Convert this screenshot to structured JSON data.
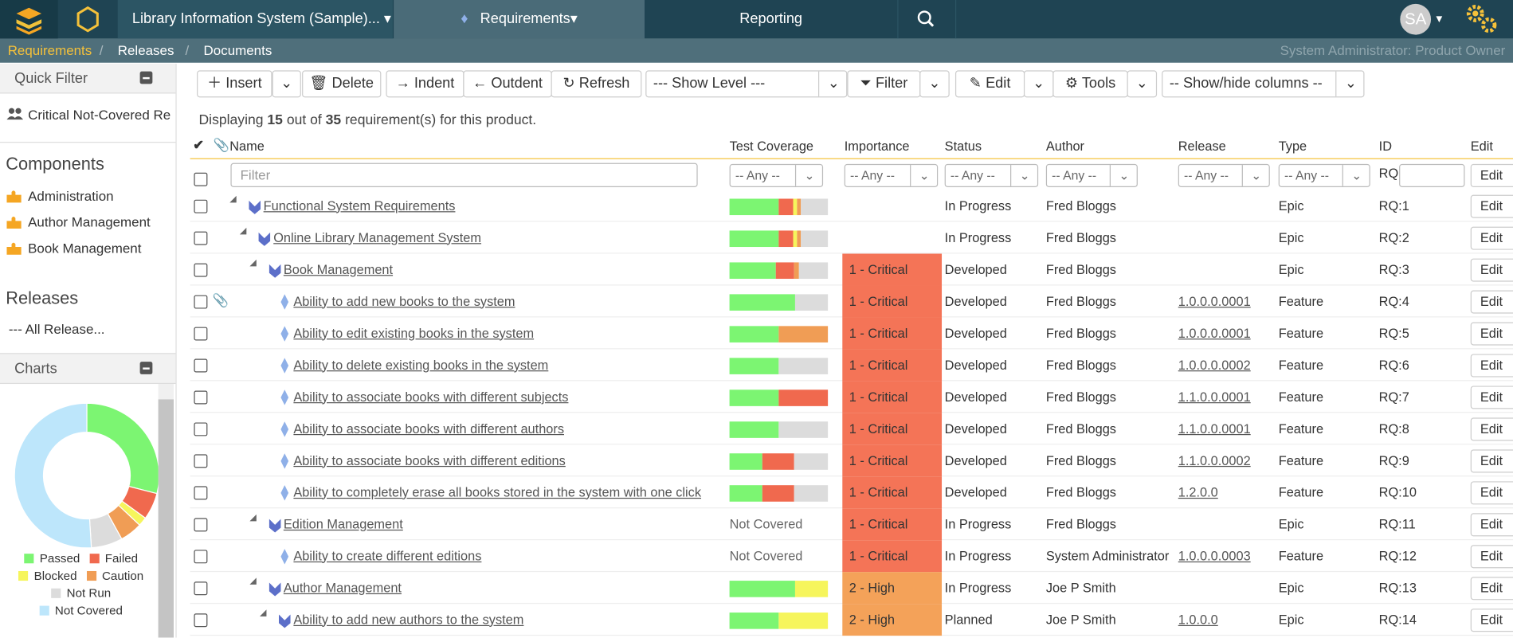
{
  "navbar": {
    "project": "Library Information System (Sample)...",
    "tab_requirements": "Requirements",
    "tab_reporting": "Reporting",
    "user_initials": "SA"
  },
  "breadcrumb": {
    "items": [
      "Requirements",
      "Releases",
      "Documents"
    ],
    "role": "System Administrator: Product Owner"
  },
  "sidebar": {
    "quick_filter": {
      "title": "Quick Filter",
      "items": [
        "Critical Not-Covered Re"
      ]
    },
    "components": {
      "title": "Components",
      "items": [
        "Administration",
        "Author Management",
        "Book Management"
      ]
    },
    "releases": {
      "title": "Releases",
      "items": [
        "--- All Release..."
      ]
    },
    "charts_title": "Charts"
  },
  "chart_data": {
    "type": "pie",
    "donut": true,
    "categories": [
      "Passed",
      "Failed",
      "Blocked",
      "Caution",
      "Not Run",
      "Not Covered"
    ],
    "values": [
      29,
      6,
      2,
      5,
      7,
      51
    ],
    "colors": [
      "#7cf572",
      "#f0694e",
      "#f6f55c",
      "#f09d55",
      "#dcdcdc",
      "#bde6fb"
    ]
  },
  "toolbar": {
    "insert": "Insert",
    "delete": "Delete",
    "indent": "Indent",
    "outdent": "Outdent",
    "refresh": "Refresh",
    "show_level": "--- Show Level ---",
    "filter": "Filter",
    "edit": "Edit",
    "tools": "Tools",
    "columns": "-- Show/hide columns --"
  },
  "summary": {
    "prefix": "Displaying",
    "shown": 15,
    "middle": "out of",
    "total": 35,
    "suffix": "requirement(s) for this product."
  },
  "table": {
    "columns": [
      "Name",
      "Test Coverage",
      "Importance",
      "Status",
      "Author",
      "Release",
      "Type",
      "ID",
      "Edit"
    ],
    "filter_placeholder": "Filter",
    "any": "-- Any --",
    "id_prefix": "RQ",
    "edit_label": "Edit",
    "rows": [
      {
        "name": "Functional System Requirements",
        "level": 0,
        "kind": "epic",
        "coverage": [
          50,
          15,
          4,
          4,
          27
        ],
        "importance": null,
        "importance_color": null,
        "status": "In Progress",
        "author": "Fred Bloggs",
        "release": null,
        "type": "Epic",
        "id": "RQ:1",
        "attachment": false
      },
      {
        "name": "Online Library Management System",
        "level": 1,
        "kind": "epic",
        "coverage": [
          50,
          15,
          4,
          4,
          27
        ],
        "importance": null,
        "importance_color": null,
        "status": "In Progress",
        "author": "Fred Bloggs",
        "release": null,
        "type": "Epic",
        "id": "RQ:2",
        "attachment": false
      },
      {
        "name": "Book Management",
        "level": 2,
        "kind": "epic",
        "coverage": [
          47,
          19,
          0,
          5,
          29
        ],
        "importance": "1 - Critical",
        "importance_color": "#f47457",
        "status": "Developed",
        "author": "Fred Bloggs",
        "release": null,
        "type": "Epic",
        "id": "RQ:3",
        "attachment": false
      },
      {
        "name": "Ability to add new books to the system",
        "level": 3,
        "kind": "feature",
        "coverage": [
          67,
          0,
          0,
          0,
          33
        ],
        "importance": "1 - Critical",
        "importance_color": "#f47457",
        "status": "Developed",
        "author": "Fred Bloggs",
        "release": "1.0.0.0.0001",
        "type": "Feature",
        "id": "RQ:4",
        "attachment": true
      },
      {
        "name": "Ability to edit existing books in the system",
        "level": 3,
        "kind": "feature",
        "coverage": [
          50,
          0,
          0,
          50,
          0
        ],
        "importance": "1 - Critical",
        "importance_color": "#f47457",
        "status": "Developed",
        "author": "Fred Bloggs",
        "release": "1.0.0.0.0001",
        "type": "Feature",
        "id": "RQ:5",
        "attachment": false
      },
      {
        "name": "Ability to delete existing books in the system",
        "level": 3,
        "kind": "feature",
        "coverage": [
          50,
          0,
          0,
          0,
          50
        ],
        "importance": "1 - Critical",
        "importance_color": "#f47457",
        "status": "Developed",
        "author": "Fred Bloggs",
        "release": "1.0.0.0.0002",
        "type": "Feature",
        "id": "RQ:6",
        "attachment": false
      },
      {
        "name": "Ability to associate books with different subjects",
        "level": 3,
        "kind": "feature",
        "coverage": [
          50,
          50,
          0,
          0,
          0
        ],
        "importance": "1 - Critical",
        "importance_color": "#f47457",
        "status": "Developed",
        "author": "Fred Bloggs",
        "release": "1.1.0.0.0001",
        "type": "Feature",
        "id": "RQ:7",
        "attachment": false
      },
      {
        "name": "Ability to associate books with different authors",
        "level": 3,
        "kind": "feature",
        "coverage": [
          50,
          0,
          0,
          0,
          50
        ],
        "importance": "1 - Critical",
        "importance_color": "#f47457",
        "status": "Developed",
        "author": "Fred Bloggs",
        "release": "1.1.0.0.0001",
        "type": "Feature",
        "id": "RQ:8",
        "attachment": false
      },
      {
        "name": "Ability to associate books with different editions",
        "level": 3,
        "kind": "feature",
        "coverage": [
          33,
          33,
          0,
          0,
          34
        ],
        "importance": "1 - Critical",
        "importance_color": "#f47457",
        "status": "Developed",
        "author": "Fred Bloggs",
        "release": "1.1.0.0.0002",
        "type": "Feature",
        "id": "RQ:9",
        "attachment": false
      },
      {
        "name": "Ability to completely erase all books stored in the system with one click",
        "level": 3,
        "kind": "feature",
        "coverage": [
          33,
          33,
          0,
          0,
          34
        ],
        "importance": "1 - Critical",
        "importance_color": "#f47457",
        "status": "Developed",
        "author": "Fred Bloggs",
        "release": "1.2.0.0",
        "type": "Feature",
        "id": "RQ:10",
        "attachment": false
      },
      {
        "name": "Edition Management",
        "level": 2,
        "kind": "epic",
        "coverage": "Not Covered",
        "importance": "1 - Critical",
        "importance_color": "#f47457",
        "status": "In Progress",
        "author": "Fred Bloggs",
        "release": null,
        "type": "Epic",
        "id": "RQ:11",
        "attachment": false
      },
      {
        "name": "Ability to create different editions",
        "level": 3,
        "kind": "feature",
        "coverage": "Not Covered",
        "importance": "1 - Critical",
        "importance_color": "#f47457",
        "status": "In Progress",
        "author": "System Administrator",
        "release": "1.0.0.0.0003",
        "type": "Feature",
        "id": "RQ:12",
        "attachment": false
      },
      {
        "name": "Author Management",
        "level": 2,
        "kind": "epic",
        "coverage": [
          67,
          0,
          33,
          0,
          0
        ],
        "importance": "2 - High",
        "importance_color": "#f4a259",
        "status": "In Progress",
        "author": "Joe P Smith",
        "release": null,
        "type": "Epic",
        "id": "RQ:13",
        "attachment": false
      },
      {
        "name": "Ability to add new authors to the system",
        "level": 3,
        "kind": "epic",
        "coverage": [
          50,
          0,
          50,
          0,
          0
        ],
        "importance": "2 - High",
        "importance_color": "#f4a259",
        "status": "Planned",
        "author": "Joe P Smith",
        "release": "1.0.0.0",
        "type": "Epic",
        "id": "RQ:14",
        "attachment": false
      }
    ]
  }
}
